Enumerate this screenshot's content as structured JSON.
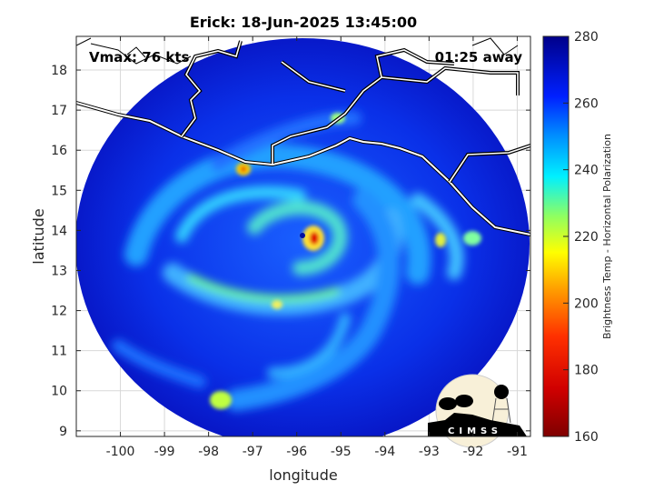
{
  "title": "Erick: 18-Jun-2025 13:45:00",
  "annotations": {
    "vmax": "Vmax: 76 kts",
    "time_away": "01:25 away"
  },
  "axes": {
    "xlabel": "longitude",
    "ylabel": "latitude",
    "xlim": [
      -101,
      -90.7
    ],
    "ylim": [
      8.86,
      18.84
    ],
    "xticks": [
      -100,
      -99,
      -98,
      -97,
      -96,
      -95,
      -94,
      -93,
      -92,
      -91
    ],
    "yticks": [
      9,
      10,
      11,
      12,
      13,
      14,
      15,
      16,
      17,
      18
    ],
    "grid": true
  },
  "colorbar": {
    "label": "Brightness Temp - Horizontal Polarization",
    "range": [
      160,
      280
    ],
    "ticks": [
      160,
      180,
      200,
      220,
      240,
      260,
      280
    ],
    "colormap": [
      "#7f0000",
      "#ff0000",
      "#ff9900",
      "#ffff00",
      "#7fff7f",
      "#00e5ff",
      "#0080ff",
      "#0000ff",
      "#00008f"
    ]
  },
  "logo": {
    "text": "CIMSS"
  },
  "colors": {
    "background_disk": "#0a1fd8",
    "coastline": "#ffffff",
    "land_outline": "#000000"
  }
}
